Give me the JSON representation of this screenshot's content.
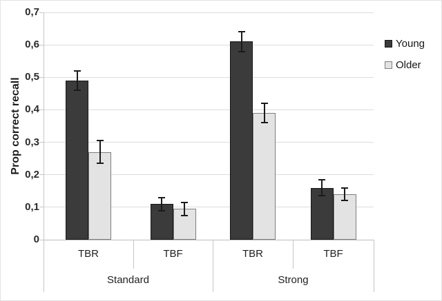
{
  "chart_data": {
    "type": "bar",
    "title": "",
    "xlabel": "",
    "ylabel": "Prop correct recall",
    "ylim": [
      0,
      0.7
    ],
    "ytick_step": 0.1,
    "ytick_labels": [
      "0",
      "0,1",
      "0,2",
      "0,3",
      "0,4",
      "0,5",
      "0,6",
      "0,7"
    ],
    "decimal_separator": ",",
    "grid": true,
    "error_bars": true,
    "legend_position": "right",
    "groups": [
      {
        "label": "Standard",
        "categories": [
          "TBR",
          "TBF"
        ]
      },
      {
        "label": "Strong",
        "categories": [
          "TBR",
          "TBF"
        ]
      }
    ],
    "categories": [
      "TBR",
      "TBF",
      "TBR",
      "TBF"
    ],
    "series": [
      {
        "name": "Young",
        "values": [
          0.49,
          0.11,
          0.61,
          0.16
        ],
        "errors": [
          0.03,
          0.02,
          0.03,
          0.025
        ],
        "color": "#3b3b3b",
        "border_color": "#161616"
      },
      {
        "name": "Older",
        "values": [
          0.27,
          0.095,
          0.39,
          0.14
        ],
        "errors": [
          0.035,
          0.02,
          0.03,
          0.02
        ],
        "color": "#e3e3e3",
        "border_color": "#7d7d7d"
      }
    ]
  },
  "colors": {
    "gridline": "#dcdcdc",
    "axis_line": "#bdbdbd",
    "separator": "#c6c6c6",
    "error_bar": "#1a1a1a",
    "text": "#1f1f1f",
    "background": "#ffffff"
  }
}
